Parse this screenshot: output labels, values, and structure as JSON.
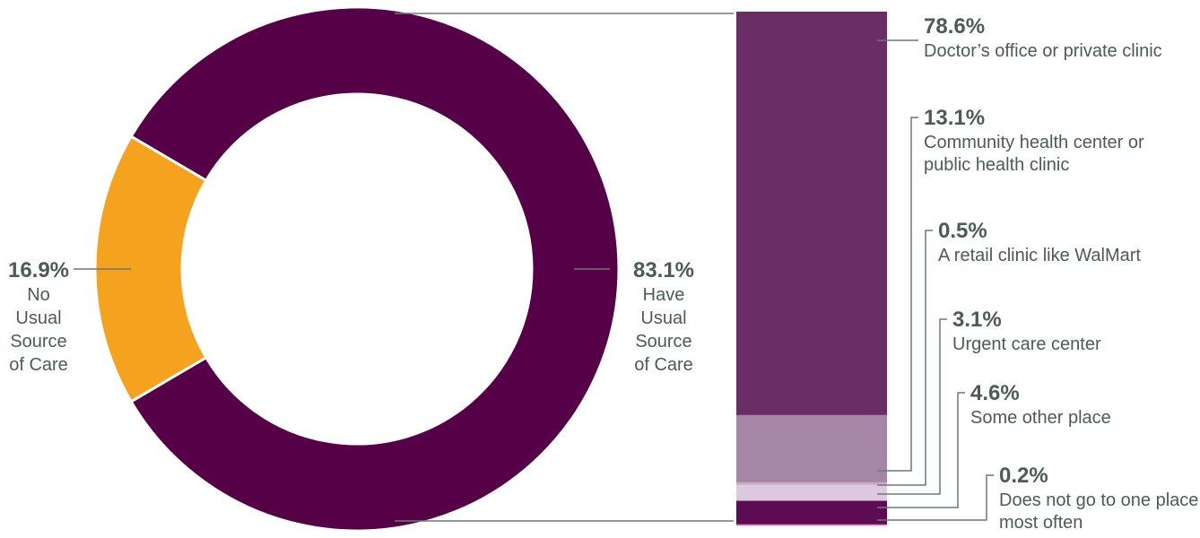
{
  "colors": {
    "text": "#4a5c55",
    "leader": "#6b7a74",
    "donut_have": "#560048",
    "donut_no": "#f5a21e"
  },
  "chart_data": [
    {
      "type": "pie",
      "donut": true,
      "slices": [
        {
          "label_lines": [
            "Have",
            "Usual",
            "Source",
            "of Care"
          ],
          "value": 83.1,
          "value_label": "83.1%",
          "color": "#560048"
        },
        {
          "label_lines": [
            "No",
            "Usual",
            "Source",
            "of Care"
          ],
          "value": 16.9,
          "value_label": "16.9%",
          "color": "#f5a21e"
        }
      ]
    },
    {
      "type": "bar",
      "stacked": true,
      "orientation": "vertical",
      "segments": [
        {
          "label_lines": [
            "Doctor’s office or private clinic"
          ],
          "value": 78.6,
          "value_label": "78.6%",
          "color": "#6a2d66"
        },
        {
          "label_lines": [
            "Community health center or",
            "public health clinic"
          ],
          "value": 13.1,
          "value_label": "13.1%",
          "color": "#a586a6"
        },
        {
          "label_lines": [
            "A retail clinic like WalMart"
          ],
          "value": 0.5,
          "value_label": "0.5%",
          "color": "#c9a9c6"
        },
        {
          "label_lines": [
            "Urgent care center"
          ],
          "value": 3.1,
          "value_label": "3.1%",
          "color": "#ddc9dd"
        },
        {
          "label_lines": [
            "Some other place"
          ],
          "value": 4.6,
          "value_label": "4.6%",
          "color": "#5e0a55"
        },
        {
          "label_lines": [
            "Does not go to one place",
            "most often"
          ],
          "value": 0.2,
          "value_label": "0.2%",
          "color": "#e07fb8"
        }
      ]
    }
  ]
}
